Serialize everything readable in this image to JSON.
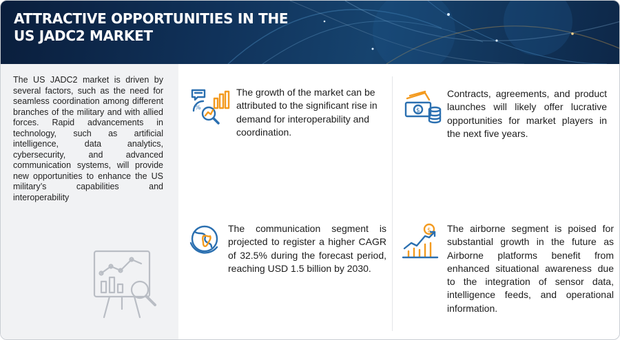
{
  "header": {
    "title_line1": "ATTRACTIVE OPPORTUNITIES IN THE",
    "title_line2": "US JADC2 MARKET"
  },
  "intro": {
    "text": "The US JADC2 market is driven by several factors, such as the need for seamless coordination among different branches of the military and with allied forces. Rapid advancements in technology, such as artificial intelligence, data analytics, cybersecurity, and advanced communication systems, will provide new opportunities to enhance the US military’s capabilities and interoperability"
  },
  "cards": [
    {
      "icon": "growth-analytics-icon",
      "text": "The growth of the market can be attributed to the significant rise in demand for interoperability and coordination."
    },
    {
      "icon": "cash-coins-icon",
      "text": "Contracts, agreements, and product launches will likely offer lucrative opportunities for market players in the next five years."
    },
    {
      "icon": "globe-icon",
      "text": "The communication segment is projected to register a higher CAGR of 32.5% during the forecast period, reaching USD 1.5 billion by 2030."
    },
    {
      "icon": "dollar-growth-chart-icon",
      "text": "The airborne segment is poised for substantial growth in the future as Airborne platforms benefit from enhanced situational awareness due to the integration of sensor data, intelligence feeds, and operational information."
    }
  ],
  "colors": {
    "header_dark": "#0a1e3c",
    "accent_orange": "#f39a1e",
    "accent_blue": "#2a6fb0",
    "panel_gray": "#f1f2f4"
  }
}
